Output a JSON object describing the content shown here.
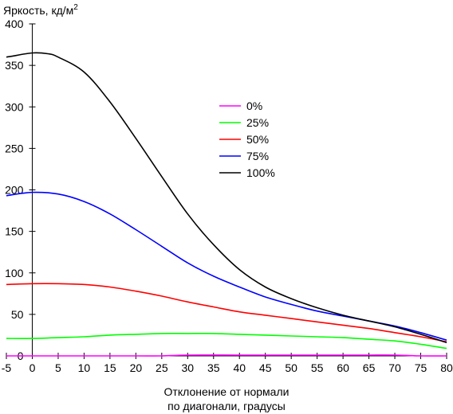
{
  "chart_data": {
    "type": "line",
    "ylabel": "Яркость, кд/м",
    "ylabel_sup": "2",
    "xlabel_line1": "Отклонение от нормали",
    "xlabel_line2": "по диагонали, градусы",
    "xlim": [
      -5,
      80
    ],
    "ylim": [
      0,
      400
    ],
    "xticks": [
      -5,
      0,
      5,
      10,
      15,
      20,
      25,
      30,
      35,
      40,
      45,
      50,
      55,
      60,
      65,
      70,
      75,
      80
    ],
    "yticks": [
      0,
      50,
      100,
      150,
      200,
      250,
      300,
      350,
      400
    ],
    "grid": false,
    "legend_position": "center",
    "series": [
      {
        "name": "0%",
        "color": "#ff00ff",
        "x": [
          -5,
          0,
          10,
          20,
          25,
          30,
          40,
          50,
          60,
          65,
          70,
          75,
          80
        ],
        "y": [
          0,
          0,
          0,
          0,
          0,
          1,
          1,
          1,
          1,
          1,
          1,
          0,
          0
        ]
      },
      {
        "name": "25%",
        "color": "#00ff00",
        "x": [
          -5,
          0,
          5,
          10,
          15,
          20,
          25,
          30,
          35,
          40,
          45,
          50,
          55,
          60,
          65,
          70,
          75,
          80
        ],
        "y": [
          21,
          21,
          22,
          23,
          25,
          26,
          27,
          27,
          27,
          26,
          25,
          24,
          23,
          22,
          20,
          18,
          14,
          9
        ]
      },
      {
        "name": "50%",
        "color": "#ff0000",
        "x": [
          -5,
          0,
          5,
          10,
          15,
          20,
          25,
          30,
          35,
          40,
          45,
          50,
          55,
          60,
          65,
          70,
          75,
          80
        ],
        "y": [
          86,
          87,
          87,
          86,
          83,
          78,
          72,
          65,
          59,
          53,
          49,
          45,
          41,
          37,
          33,
          28,
          23,
          17
        ]
      },
      {
        "name": "75%",
        "color": "#0000ff",
        "x": [
          -5,
          0,
          5,
          10,
          15,
          20,
          25,
          30,
          35,
          40,
          45,
          50,
          55,
          60,
          65,
          70,
          75,
          80
        ],
        "y": [
          193,
          197,
          195,
          186,
          171,
          152,
          132,
          112,
          96,
          83,
          71,
          62,
          54,
          48,
          42,
          36,
          28,
          19
        ]
      },
      {
        "name": "100%",
        "color": "#000000",
        "x": [
          -5,
          -4,
          0,
          3,
          5,
          10,
          15,
          20,
          25,
          30,
          35,
          40,
          45,
          50,
          55,
          60,
          65,
          70,
          75,
          80
        ],
        "y": [
          360,
          361,
          365,
          364,
          360,
          342,
          306,
          262,
          216,
          171,
          134,
          104,
          83,
          69,
          58,
          49,
          42,
          35,
          26,
          16
        ]
      }
    ]
  }
}
